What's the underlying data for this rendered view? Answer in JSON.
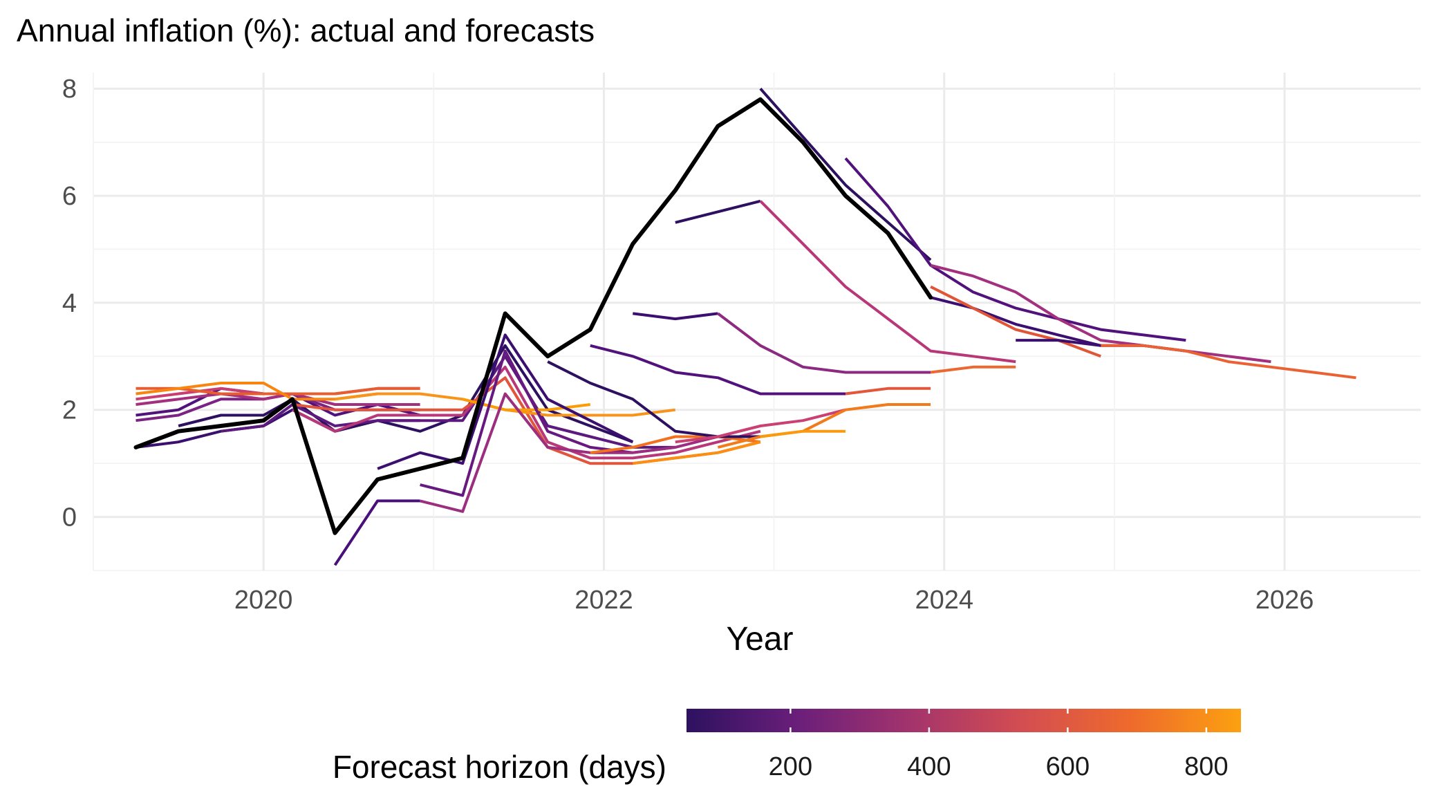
{
  "chart_data": {
    "type": "line",
    "title": "Annual inflation (%): actual and forecasts",
    "xlabel": "Year",
    "ylabel": "",
    "xlim": [
      2019.0,
      2026.8
    ],
    "ylim": [
      -1.0,
      8.3
    ],
    "x_ticks": [
      2020,
      2022,
      2024,
      2026
    ],
    "y_ticks": [
      0,
      2,
      4,
      6,
      8
    ],
    "grid": true,
    "legend": {
      "title": "Forecast horizon (days)",
      "placement": "bottom",
      "type": "colorbar",
      "range": [
        50,
        850
      ],
      "ticks": [
        200,
        400,
        600,
        800
      ],
      "colors": [
        "#2d1160",
        "#6a1f7a",
        "#a2336d",
        "#d24d52",
        "#ee6a2c",
        "#fca110"
      ]
    },
    "actual": {
      "color": "#000000",
      "x": [
        2019.25,
        2019.5,
        2019.75,
        2020.0,
        2020.17,
        2020.42,
        2020.67,
        2020.92,
        2021.17,
        2021.42,
        2021.67,
        2021.92,
        2022.17,
        2022.42,
        2022.67,
        2022.92,
        2023.17,
        2023.42,
        2023.67,
        2023.92
      ],
      "y": [
        1.3,
        1.6,
        1.7,
        1.8,
        2.2,
        -0.3,
        0.7,
        0.9,
        1.1,
        3.8,
        3.0,
        3.5,
        5.1,
        6.1,
        7.3,
        7.8,
        7.0,
        6.0,
        5.3,
        4.1
      ]
    },
    "series": [
      {
        "color": "#3b0f70",
        "x": [
          2019.25,
          2019.5,
          2019.75,
          2020.0,
          2020.17,
          2020.42,
          2020.67,
          2020.92
        ],
        "y": [
          1.3,
          1.4,
          1.6,
          1.7,
          2.0,
          1.6,
          1.8,
          1.8
        ]
      },
      {
        "color": "#51127c",
        "x": [
          2019.25,
          2019.5,
          2019.75,
          2020.0,
          2020.17,
          2020.42,
          2020.67,
          2020.92
        ],
        "y": [
          1.9,
          2.0,
          2.4,
          2.3,
          2.3,
          1.9,
          2.1,
          1.9
        ]
      },
      {
        "color": "#7b2382",
        "x": [
          2019.25,
          2019.5,
          2019.75,
          2020.0,
          2020.17,
          2020.42,
          2020.67,
          2020.92
        ],
        "y": [
          1.8,
          1.9,
          2.2,
          2.2,
          2.3,
          2.0,
          2.0,
          2.0
        ]
      },
      {
        "color": "#a3307e",
        "x": [
          2019.25,
          2019.5,
          2019.75,
          2020.0,
          2020.17,
          2020.42,
          2020.67,
          2020.92
        ],
        "y": [
          2.1,
          2.2,
          2.3,
          2.2,
          2.3,
          2.1,
          2.1,
          2.1
        ]
      },
      {
        "color": "#c83e73",
        "x": [
          2019.25,
          2019.5,
          2019.75,
          2020.0,
          2020.17,
          2020.42,
          2020.67,
          2020.92
        ],
        "y": [
          2.2,
          2.3,
          2.4,
          2.3,
          2.3,
          2.3,
          2.4,
          2.4
        ]
      },
      {
        "color": "#e65d2f",
        "x": [
          2019.25,
          2019.5,
          2019.75,
          2020.0,
          2020.17,
          2020.42,
          2020.67,
          2020.92
        ],
        "y": [
          2.4,
          2.4,
          2.3,
          2.3,
          2.3,
          2.3,
          2.4,
          2.4
        ]
      },
      {
        "color": "#f8850f",
        "x": [
          2019.25,
          2019.5,
          2019.75,
          2020.0,
          2020.17,
          2020.42,
          2020.67,
          2020.92
        ],
        "y": [
          2.3,
          2.4,
          2.5,
          2.5,
          2.2,
          2.2,
          2.3,
          2.3
        ]
      },
      {
        "color": "#2d1160",
        "x": [
          2019.5,
          2019.75,
          2020.0,
          2020.17,
          2020.42,
          2020.67,
          2020.92,
          2021.17,
          2021.42,
          2021.67,
          2021.92,
          2022.17
        ],
        "y": [
          1.7,
          1.9,
          1.9,
          2.2,
          1.6,
          1.8,
          1.6,
          1.9,
          3.2,
          2.0,
          1.7,
          1.4
        ]
      },
      {
        "color": "#5c1a7e",
        "x": [
          2019.75,
          2020.0,
          2020.17,
          2020.42,
          2020.67,
          2020.92,
          2021.17,
          2021.42,
          2021.67,
          2021.92,
          2022.17,
          2022.42
        ],
        "y": [
          1.6,
          1.7,
          2.1,
          1.7,
          1.8,
          1.8,
          1.8,
          3.0,
          1.7,
          1.5,
          1.3,
          1.3
        ]
      },
      {
        "color": "#b73779",
        "x": [
          2020.17,
          2020.42,
          2020.67,
          2020.92,
          2021.17,
          2021.42,
          2021.67,
          2021.92,
          2022.17,
          2022.42,
          2022.67,
          2022.92
        ],
        "y": [
          2.0,
          1.6,
          1.9,
          1.9,
          1.9,
          2.8,
          1.4,
          1.1,
          1.1,
          1.2,
          1.4,
          1.6
        ]
      },
      {
        "color": "#e0553c",
        "x": [
          2020.17,
          2020.42,
          2020.67,
          2020.92,
          2021.17,
          2021.42,
          2021.67,
          2021.92,
          2022.17,
          2022.42,
          2022.67,
          2022.92
        ],
        "y": [
          2.1,
          2.0,
          2.0,
          2.0,
          2.0,
          2.6,
          1.3,
          1.0,
          1.0,
          1.1,
          1.2,
          1.4
        ]
      },
      {
        "color": "#f7941b",
        "x": [
          2020.42,
          2020.67,
          2020.92,
          2021.17,
          2021.42,
          2021.67,
          2021.92,
          2022.17,
          2022.42
        ],
        "y": [
          2.2,
          2.3,
          2.3,
          2.2,
          2.0,
          1.9,
          1.9,
          1.9,
          2.0
        ]
      },
      {
        "color": "#fb9b06",
        "x": [
          2021.17,
          2021.42,
          2021.67,
          2021.92
        ],
        "y": [
          2.2,
          2.0,
          2.0,
          2.1
        ]
      },
      {
        "color": "#4a1079",
        "x": [
          2020.42,
          2020.67,
          2020.92
        ],
        "y": [
          -0.9,
          0.3,
          0.3
        ]
      },
      {
        "color": "#3b0f70",
        "x": [
          2020.67,
          2020.92,
          2021.17,
          2021.42,
          2021.67,
          2021.92,
          2022.17
        ],
        "y": [
          0.9,
          1.2,
          1.0,
          3.4,
          2.2,
          1.8,
          1.4
        ]
      },
      {
        "color": "#66197f",
        "x": [
          2020.92,
          2021.17,
          2021.42,
          2021.67,
          2021.92,
          2022.17,
          2022.42
        ],
        "y": [
          0.6,
          0.4,
          3.1,
          1.6,
          1.3,
          1.2,
          1.3
        ]
      },
      {
        "color": "#9c2e7f",
        "x": [
          2020.92,
          2021.17,
          2021.42,
          2021.67,
          2021.92,
          2022.17,
          2022.42,
          2022.67
        ],
        "y": [
          0.3,
          0.1,
          2.3,
          1.3,
          1.2,
          1.2,
          1.3,
          1.5
        ]
      },
      {
        "color": "#f1711f",
        "x": [
          2021.92,
          2022.17,
          2022.42,
          2022.67,
          2022.92
        ],
        "y": [
          1.2,
          1.3,
          1.5,
          1.5,
          1.4
        ]
      },
      {
        "color": "#fa8f12",
        "x": [
          2022.17,
          2022.42,
          2022.67,
          2022.92
        ],
        "y": [
          1.0,
          1.1,
          1.2,
          1.4
        ]
      },
      {
        "color": "#2d1160",
        "x": [
          2021.67,
          2021.92,
          2022.17,
          2022.42,
          2022.67,
          2022.92
        ],
        "y": [
          2.9,
          2.5,
          2.2,
          1.6,
          1.5,
          1.5
        ]
      },
      {
        "color": "#51127c",
        "x": [
          2021.92,
          2022.17,
          2022.42,
          2022.67,
          2022.92,
          2023.17,
          2023.42
        ],
        "y": [
          3.2,
          3.0,
          2.7,
          2.6,
          2.3,
          2.3,
          2.3
        ]
      },
      {
        "color": "#cb4072",
        "x": [
          2022.42,
          2022.67,
          2022.92,
          2023.17,
          2023.42
        ],
        "y": [
          1.4,
          1.5,
          1.7,
          1.8,
          2.0
        ]
      },
      {
        "color": "#e3563c",
        "x": [
          2023.42,
          2023.67,
          2023.92
        ],
        "y": [
          2.3,
          2.4,
          2.4
        ]
      },
      {
        "color": "#f17a1a",
        "x": [
          2022.67,
          2022.92,
          2023.17,
          2023.42,
          2023.67,
          2023.92
        ],
        "y": [
          1.3,
          1.5,
          1.6,
          2.0,
          2.1,
          2.1
        ]
      },
      {
        "color": "#fa9a0e",
        "x": [
          2022.92,
          2023.17,
          2023.42
        ],
        "y": [
          1.5,
          1.6,
          1.6
        ]
      },
      {
        "color": "#3b0f70",
        "x": [
          2022.17,
          2022.42,
          2022.67
        ],
        "y": [
          3.8,
          3.7,
          3.8
        ]
      },
      {
        "color": "#8c2981",
        "x": [
          2022.67,
          2022.92,
          2023.17,
          2023.42,
          2023.67,
          2023.92
        ],
        "y": [
          3.8,
          3.2,
          2.8,
          2.7,
          2.7,
          2.7
        ]
      },
      {
        "color": "#eb6830",
        "x": [
          2023.92,
          2024.17,
          2024.42
        ],
        "y": [
          2.7,
          2.8,
          2.8
        ]
      },
      {
        "color": "#2d1160",
        "x": [
          2022.42,
          2022.67,
          2022.92
        ],
        "y": [
          5.5,
          5.7,
          5.9
        ]
      },
      {
        "color": "#b73779",
        "x": [
          2022.92,
          2023.17,
          2023.42,
          2023.67,
          2023.92,
          2024.17,
          2024.42
        ],
        "y": [
          5.9,
          5.1,
          4.3,
          3.7,
          3.1,
          3.0,
          2.9
        ]
      },
      {
        "color": "#2d1160",
        "x": [
          2022.92,
          2023.17,
          2023.42,
          2023.67,
          2023.92
        ],
        "y": [
          8.0,
          7.1,
          6.2,
          5.5,
          4.8
        ]
      },
      {
        "color": "#51127c",
        "x": [
          2023.42,
          2023.67,
          2023.92,
          2024.17,
          2024.42,
          2024.67,
          2024.92,
          2025.17,
          2025.42
        ],
        "y": [
          6.7,
          5.8,
          4.7,
          4.2,
          3.9,
          3.7,
          3.5,
          3.4,
          3.3
        ]
      },
      {
        "color": "#3b0f70",
        "x": [
          2023.92,
          2024.17,
          2024.42,
          2024.67,
          2024.92,
          2025.17,
          2025.42
        ],
        "y": [
          4.1,
          3.9,
          3.6,
          3.4,
          3.2,
          3.2,
          3.1
        ]
      },
      {
        "color": "#a3307e",
        "x": [
          2023.92,
          2024.17,
          2024.42,
          2024.67,
          2024.92,
          2025.17,
          2025.42,
          2025.67,
          2025.92
        ],
        "y": [
          4.7,
          4.5,
          4.2,
          3.7,
          3.3,
          3.2,
          3.1,
          3.0,
          2.9
        ]
      },
      {
        "color": "#e05536",
        "x": [
          2023.92,
          2024.17,
          2024.42,
          2024.67,
          2024.92
        ],
        "y": [
          4.3,
          3.9,
          3.5,
          3.3,
          3.0
        ]
      },
      {
        "color": "#ea6233",
        "x": [
          2024.92,
          2025.17,
          2025.42,
          2025.67,
          2025.92,
          2026.17,
          2026.42
        ],
        "y": [
          3.2,
          3.2,
          3.1,
          2.9,
          2.8,
          2.7,
          2.6
        ]
      },
      {
        "color": "#3b0f70",
        "x": [
          2024.42,
          2024.67,
          2024.92
        ],
        "y": [
          3.3,
          3.3,
          3.2
        ]
      }
    ]
  }
}
